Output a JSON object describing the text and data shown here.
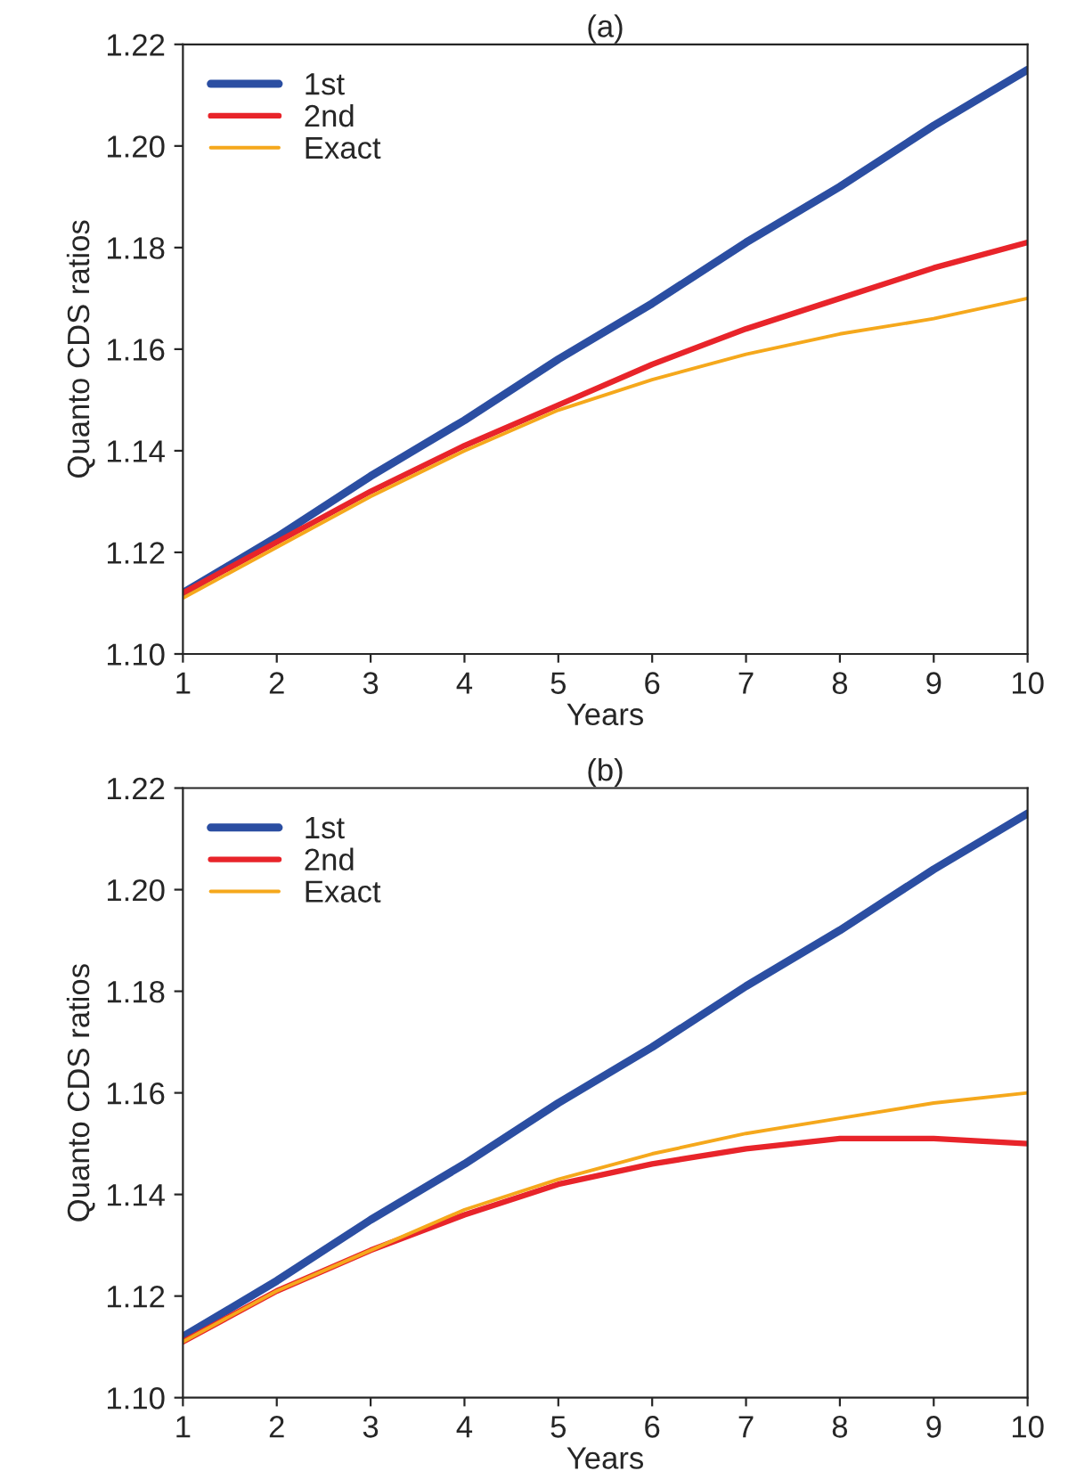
{
  "chart_data": [
    {
      "type": "line",
      "title": "(a)",
      "xlabel": "Years",
      "ylabel": "Quanto CDS ratios",
      "x": [
        1,
        2,
        3,
        4,
        5,
        6,
        7,
        8,
        9,
        10
      ],
      "series": [
        {
          "name": "1st",
          "color": "#2b4ea2",
          "values": [
            1.112,
            1.123,
            1.135,
            1.146,
            1.158,
            1.169,
            1.181,
            1.192,
            1.204,
            1.215
          ]
        },
        {
          "name": "2nd",
          "color": "#e8242a",
          "values": [
            1.112,
            1.122,
            1.132,
            1.141,
            1.149,
            1.157,
            1.164,
            1.17,
            1.176,
            1.181
          ]
        },
        {
          "name": "Exact",
          "color": "#f5a81c",
          "values": [
            1.111,
            1.121,
            1.131,
            1.14,
            1.148,
            1.154,
            1.159,
            1.163,
            1.166,
            1.17
          ]
        }
      ],
      "xlim": [
        1,
        10
      ],
      "xticks": [
        1,
        2,
        3,
        4,
        5,
        6,
        7,
        8,
        9,
        10
      ],
      "ylim": [
        1.1,
        1.22
      ],
      "yticks": [
        {
          "value": 1.1,
          "label": "1.10"
        },
        {
          "value": 1.12,
          "label": "1.12"
        },
        {
          "value": 1.14,
          "label": "1.14"
        },
        {
          "value": 1.16,
          "label": "1.16"
        },
        {
          "value": 1.18,
          "label": "1.18"
        },
        {
          "value": 1.2,
          "label": "1.20"
        },
        {
          "value": 1.22,
          "label": "1.22"
        }
      ],
      "legend": "top left",
      "grid": false,
      "line_style": "solid"
    },
    {
      "type": "line",
      "title": "(b)",
      "xlabel": "Years",
      "ylabel": "Quanto CDS ratios",
      "x": [
        1,
        2,
        3,
        4,
        5,
        6,
        7,
        8,
        9,
        10
      ],
      "series": [
        {
          "name": "1st",
          "color": "#2b4ea2",
          "values": [
            1.112,
            1.123,
            1.135,
            1.146,
            1.158,
            1.169,
            1.181,
            1.192,
            1.204,
            1.215
          ]
        },
        {
          "name": "2nd",
          "color": "#e8242a",
          "values": [
            1.111,
            1.121,
            1.129,
            1.136,
            1.142,
            1.146,
            1.149,
            1.151,
            1.151,
            1.15
          ]
        },
        {
          "name": "Exact",
          "color": "#f5a81c",
          "values": [
            1.111,
            1.121,
            1.129,
            1.137,
            1.143,
            1.148,
            1.152,
            1.155,
            1.158,
            1.16
          ]
        }
      ],
      "xlim": [
        1,
        10
      ],
      "xticks": [
        1,
        2,
        3,
        4,
        5,
        6,
        7,
        8,
        9,
        10
      ],
      "ylim": [
        1.1,
        1.22
      ],
      "yticks": [
        {
          "value": 1.1,
          "label": "1.10"
        },
        {
          "value": 1.12,
          "label": "1.12"
        },
        {
          "value": 1.14,
          "label": "1.14"
        },
        {
          "value": 1.16,
          "label": "1.16"
        },
        {
          "value": 1.18,
          "label": "1.18"
        },
        {
          "value": 1.2,
          "label": "1.20"
        },
        {
          "value": 1.22,
          "label": "1.22"
        }
      ],
      "legend": "top left",
      "grid": false,
      "line_style": "solid"
    }
  ]
}
